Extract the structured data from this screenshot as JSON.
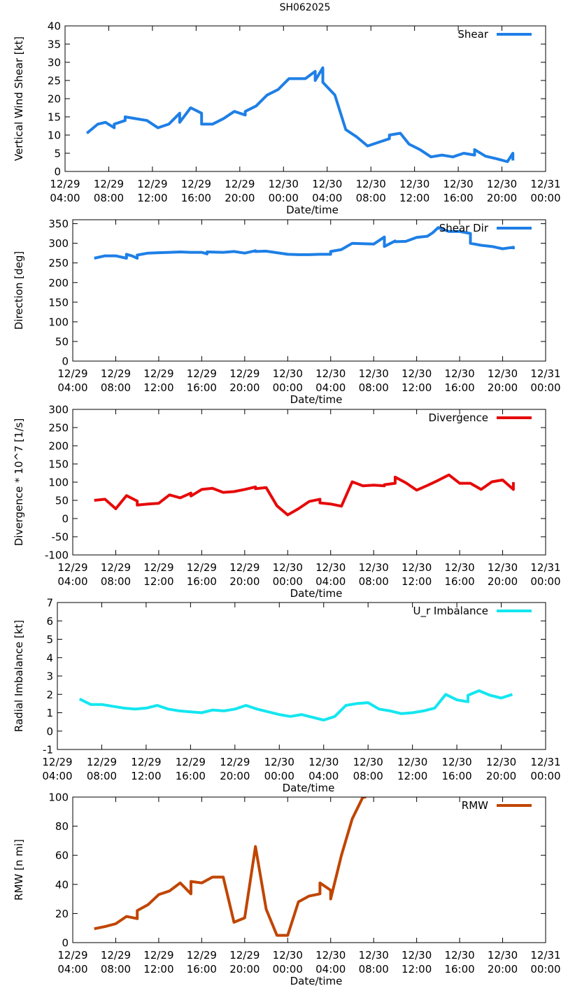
{
  "figure_title": "SH062025",
  "chart_data": [
    {
      "type": "line",
      "ylabel": "Vertical Wind Shear [kt]",
      "xlabel": "Date/time",
      "xlim": [
        4,
        48
      ],
      "ylim": [
        0,
        40
      ],
      "yticks": [
        0,
        5,
        10,
        15,
        20,
        25,
        30,
        35,
        40
      ],
      "grid": false,
      "legend_position": "top-right",
      "xtick_labels": [
        [
          "12/29",
          "04:00"
        ],
        [
          "12/29",
          "08:00"
        ],
        [
          "12/29",
          "12:00"
        ],
        [
          "12/29",
          "16:00"
        ],
        [
          "12/29",
          "20:00"
        ],
        [
          "12/30",
          "00:00"
        ],
        [
          "12/30",
          "04:00"
        ],
        [
          "12/30",
          "08:00"
        ],
        [
          "12/30",
          "12:00"
        ],
        [
          "12/30",
          "16:00"
        ],
        [
          "12/30",
          "20:00"
        ],
        [
          "12/31",
          "00:00"
        ]
      ],
      "series": [
        {
          "name": "Shear",
          "color": "#1e7fe6",
          "x": [
            6,
            7,
            7.7,
            8.5,
            8.5,
            9.5,
            9.5,
            10.5,
            11.5,
            12.5,
            13.5,
            14.5,
            14.5,
            15.5,
            16.5,
            16.5,
            17.5,
            18.5,
            19.5,
            20.5,
            20.5,
            21.5,
            22.5,
            23.5,
            24.5,
            25,
            26,
            26.9,
            26.9,
            27.6,
            27.6,
            28.7,
            29.7,
            30.7,
            31.7,
            32.7,
            33.7,
            33.7,
            34.7,
            35.5,
            36.5,
            37.5,
            38.5,
            39.5,
            40.5,
            41.5,
            41.5,
            42.5,
            43.5,
            44.5,
            45,
            45
          ],
          "y": [
            10.5,
            13,
            13.5,
            12,
            13,
            14,
            15,
            14.5,
            14,
            12,
            13,
            16,
            13.5,
            17.5,
            16,
            13,
            13,
            14.5,
            16.5,
            15.5,
            16.5,
            18,
            21,
            22.5,
            25.5,
            25.5,
            25.5,
            27.5,
            25,
            28.5,
            24.5,
            21,
            11.5,
            9.5,
            7,
            8,
            9,
            10,
            10.5,
            7.5,
            6,
            4,
            4.5,
            4,
            5,
            4.5,
            6,
            4.2,
            3.5,
            2.7,
            5,
            3
          ]
        }
      ]
    },
    {
      "type": "line",
      "ylabel": "Direction [deg]",
      "xlabel": "Date/time",
      "xlim": [
        4,
        48
      ],
      "ylim": [
        0,
        360
      ],
      "yticks": [
        0,
        50,
        100,
        150,
        200,
        250,
        300,
        350
      ],
      "grid": false,
      "legend_position": "top-right",
      "xtick_labels": [
        [
          "12/29",
          "04:00"
        ],
        [
          "12/29",
          "08:00"
        ],
        [
          "12/29",
          "12:00"
        ],
        [
          "12/29",
          "16:00"
        ],
        [
          "12/29",
          "20:00"
        ],
        [
          "12/30",
          "00:00"
        ],
        [
          "12/30",
          "04:00"
        ],
        [
          "12/30",
          "08:00"
        ],
        [
          "12/30",
          "12:00"
        ],
        [
          "12/30",
          "16:00"
        ],
        [
          "12/30",
          "20:00"
        ],
        [
          "12/31",
          "00:00"
        ]
      ],
      "series": [
        {
          "name": "Shear Dir",
          "color": "#1e7fe6",
          "x": [
            6,
            7,
            8,
            9,
            9,
            9.5,
            10,
            10,
            11,
            12,
            13,
            14,
            15,
            16,
            16.5,
            16.5,
            18,
            19,
            20,
            21,
            21,
            22,
            23,
            24,
            25,
            26,
            27,
            28,
            28,
            29,
            30,
            31,
            32,
            33,
            33,
            34,
            34,
            35,
            36,
            37,
            37.5,
            38,
            39,
            40,
            41,
            41,
            42,
            43,
            44,
            45,
            45
          ],
          "y": [
            262,
            268,
            268,
            262,
            272,
            268,
            262,
            270,
            275,
            276,
            277,
            278,
            277,
            277,
            273,
            278,
            277,
            279,
            275,
            281,
            279,
            280,
            276,
            272,
            271,
            271,
            272,
            272,
            279,
            284,
            300,
            299,
            298,
            316,
            292,
            306,
            304,
            305,
            315,
            318,
            327,
            340,
            330,
            330,
            325,
            300,
            295,
            292,
            286,
            290,
            285
          ]
        }
      ]
    },
    {
      "type": "line",
      "ylabel": "Divergence * 10^7 [1/s]",
      "xlabel": "Date/time",
      "xlim": [
        4,
        48
      ],
      "ylim": [
        -100,
        300
      ],
      "yticks": [
        -100,
        -50,
        0,
        50,
        100,
        150,
        200,
        250,
        300
      ],
      "grid": false,
      "legend_position": "top-right",
      "xtick_labels": [
        [
          "12/29",
          "04:00"
        ],
        [
          "12/29",
          "08:00"
        ],
        [
          "12/29",
          "12:00"
        ],
        [
          "12/29",
          "16:00"
        ],
        [
          "12/29",
          "20:00"
        ],
        [
          "12/30",
          "00:00"
        ],
        [
          "12/30",
          "04:00"
        ],
        [
          "12/30",
          "08:00"
        ],
        [
          "12/30",
          "12:00"
        ],
        [
          "12/30",
          "16:00"
        ],
        [
          "12/30",
          "20:00"
        ],
        [
          "12/31",
          "00:00"
        ]
      ],
      "series": [
        {
          "name": "Divergence",
          "color": "#e60a0a",
          "x": [
            6,
            7,
            8,
            9,
            10,
            10,
            11,
            12,
            13,
            14,
            15,
            15,
            16,
            17,
            18,
            19,
            20,
            21,
            21,
            22,
            23,
            24,
            25,
            26,
            27,
            27,
            28,
            29,
            30,
            31,
            32,
            33,
            33,
            34,
            34,
            35,
            36,
            37,
            38,
            39,
            40,
            41,
            42,
            43,
            44,
            45,
            45
          ],
          "y": [
            50,
            53,
            27,
            63,
            48,
            37,
            40,
            42,
            65,
            57,
            70,
            62,
            80,
            83,
            72,
            74,
            80,
            87,
            82,
            85,
            35,
            10,
            27,
            47,
            53,
            43,
            40,
            34,
            101,
            90,
            92,
            90,
            93,
            97,
            114,
            98,
            78,
            91,
            105,
            120,
            97,
            97,
            80,
            101,
            106,
            80,
            100
          ]
        }
      ]
    },
    {
      "type": "line",
      "ylabel": "Radial Imbalance [kt]",
      "xlabel": "Date/time",
      "xlim": [
        4,
        48
      ],
      "ylim": [
        -1,
        7
      ],
      "yticks": [
        -1,
        0,
        1,
        2,
        3,
        4,
        5,
        6,
        7
      ],
      "grid": false,
      "legend_position": "top-right",
      "xtick_labels": [
        [
          "12/29",
          "04:00"
        ],
        [
          "12/29",
          "08:00"
        ],
        [
          "12/29",
          "12:00"
        ],
        [
          "12/29",
          "16:00"
        ],
        [
          "12/29",
          "20:00"
        ],
        [
          "12/30",
          "00:00"
        ],
        [
          "12/30",
          "04:00"
        ],
        [
          "12/30",
          "08:00"
        ],
        [
          "12/30",
          "12:00"
        ],
        [
          "12/30",
          "16:00"
        ],
        [
          "12/30",
          "20:00"
        ],
        [
          "12/31",
          "00:00"
        ]
      ],
      "series": [
        {
          "name": "U_r Imbalance",
          "color": "#14e6f0",
          "x": [
            6,
            7,
            8,
            9,
            10,
            11,
            12,
            13,
            14,
            15,
            16,
            17,
            18,
            19,
            20,
            21,
            22,
            23,
            24,
            25,
            26,
            27,
            28,
            29,
            30,
            31,
            32,
            33,
            34,
            35,
            36,
            37,
            38,
            39,
            40,
            41,
            41,
            42,
            43,
            44,
            45
          ],
          "y": [
            1.75,
            1.45,
            1.45,
            1.35,
            1.25,
            1.2,
            1.25,
            1.4,
            1.2,
            1.1,
            1.05,
            1.0,
            1.15,
            1.1,
            1.2,
            1.4,
            1.2,
            1.05,
            0.9,
            0.8,
            0.9,
            0.75,
            0.6,
            0.8,
            1.4,
            1.5,
            1.55,
            1.2,
            1.1,
            0.95,
            1.0,
            1.1,
            1.25,
            2.0,
            1.7,
            1.6,
            1.95,
            2.2,
            1.95,
            1.8,
            2.0
          ]
        }
      ]
    },
    {
      "type": "line",
      "ylabel": "RMW [n mi]",
      "xlabel": "Date/time",
      "xlim": [
        4,
        48
      ],
      "ylim": [
        0,
        100
      ],
      "yticks": [
        0,
        20,
        40,
        60,
        80,
        100
      ],
      "grid": false,
      "legend_position": "top-right",
      "xtick_labels": [
        [
          "12/29",
          "04:00"
        ],
        [
          "12/29",
          "08:00"
        ],
        [
          "12/29",
          "12:00"
        ],
        [
          "12/29",
          "16:00"
        ],
        [
          "12/29",
          "20:00"
        ],
        [
          "12/30",
          "00:00"
        ],
        [
          "12/30",
          "04:00"
        ],
        [
          "12/30",
          "08:00"
        ],
        [
          "12/30",
          "12:00"
        ],
        [
          "12/30",
          "16:00"
        ],
        [
          "12/30",
          "20:00"
        ],
        [
          "12/31",
          "00:00"
        ]
      ],
      "series": [
        {
          "name": "RMW",
          "color": "#c04500",
          "x": [
            6,
            7,
            8,
            9,
            10,
            10,
            11,
            12,
            13,
            14,
            15,
            15,
            16,
            17,
            18,
            19,
            20,
            21,
            22,
            23,
            24,
            25,
            26,
            27,
            27,
            28,
            28,
            29,
            30,
            31,
            31.3
          ],
          "y": [
            9.5,
            11,
            13,
            18,
            16.5,
            22,
            26,
            33,
            35.5,
            41,
            33.5,
            42,
            41,
            45,
            45,
            14,
            17,
            66,
            23,
            5,
            5,
            28,
            32,
            33.5,
            41,
            36,
            30,
            60,
            85,
            100,
            100
          ]
        }
      ]
    }
  ]
}
